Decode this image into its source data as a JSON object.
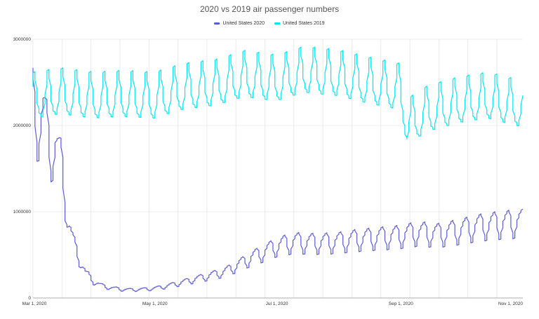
{
  "chart_data": {
    "type": "line",
    "title": "2020 vs 2019 air passenger numbers",
    "xlabel": "",
    "ylabel": "",
    "x_tick_labels": [
      "Mar 1, 2020",
      "May 1, 2020",
      "Jul 1, 2020",
      "Sep 1, 2020",
      "Nov 1, 2020"
    ],
    "y_tick_labels": [
      "0",
      "1000000",
      "2000000",
      "3000000"
    ],
    "y_ticks": [
      0,
      1000000,
      2000000,
      3000000
    ],
    "ylim": [
      0,
      3000000
    ],
    "x_start": "2020-03-01",
    "x_end": "2020-11-01",
    "grid": true,
    "legend_position": "top-center",
    "series": [
      {
        "name": "United States 2020",
        "color": "#5b5bd6",
        "x": [
          "2020-03-01",
          "2020-03-04",
          "2020-03-07",
          "2020-03-10",
          "2020-03-13",
          "2020-03-16",
          "2020-03-19",
          "2020-03-22",
          "2020-03-25",
          "2020-03-28",
          "2020-04-01",
          "2020-04-05",
          "2020-04-10",
          "2020-04-15",
          "2020-04-20",
          "2020-04-25",
          "2020-05-01",
          "2020-05-08",
          "2020-05-15",
          "2020-05-22",
          "2020-05-29",
          "2020-06-05",
          "2020-06-12",
          "2020-06-19",
          "2020-06-26",
          "2020-07-01",
          "2020-07-10",
          "2020-07-20",
          "2020-07-31",
          "2020-08-10",
          "2020-08-20",
          "2020-08-31",
          "2020-09-10",
          "2020-09-20",
          "2020-09-30",
          "2020-10-10",
          "2020-10-20",
          "2020-10-31"
        ],
        "values": [
          2280000,
          2000000,
          2100000,
          1700000,
          1750000,
          1500000,
          900000,
          600000,
          450000,
          280000,
          190000,
          140000,
          115000,
          100000,
          95000,
          100000,
          110000,
          140000,
          180000,
          220000,
          260000,
          300000,
          380000,
          470000,
          540000,
          600000,
          650000,
          640000,
          650000,
          680000,
          700000,
          720000,
          760000,
          740000,
          780000,
          830000,
          860000,
          880000
        ]
      },
      {
        "name": "United States 2019",
        "color": "#00e5f0",
        "x": [
          "2020-03-01",
          "2020-03-15",
          "2020-04-01",
          "2020-04-15",
          "2020-05-01",
          "2020-05-15",
          "2020-06-01",
          "2020-06-15",
          "2020-07-01",
          "2020-07-15",
          "2020-08-01",
          "2020-08-15",
          "2020-09-01",
          "2020-09-05",
          "2020-09-15",
          "2020-10-01",
          "2020-10-15",
          "2020-11-01"
        ],
        "values": [
          2300000,
          2350000,
          2300000,
          2320000,
          2300000,
          2400000,
          2450000,
          2550000,
          2500000,
          2600000,
          2560000,
          2480000,
          2400000,
          2000000,
          2150000,
          2250000,
          2300000,
          2200000
        ]
      }
    ]
  }
}
